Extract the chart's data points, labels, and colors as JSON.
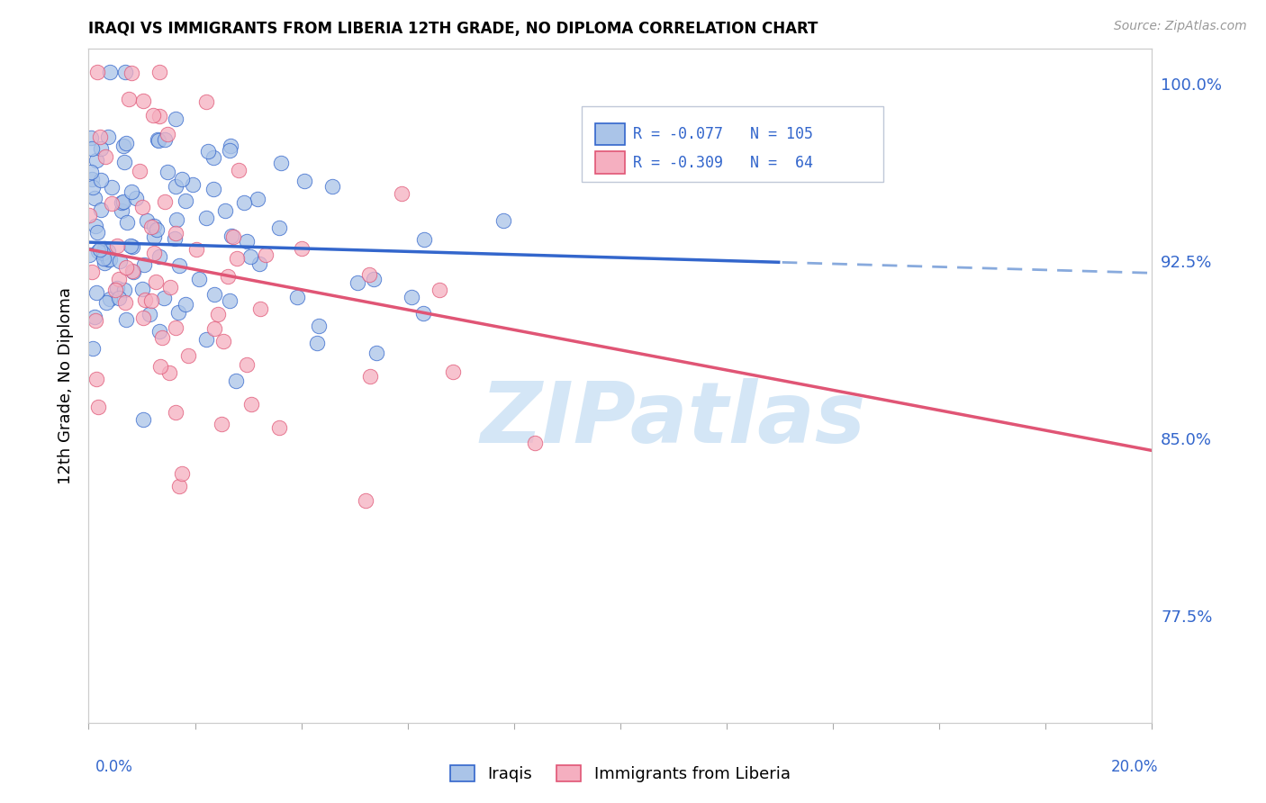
{
  "title": "IRAQI VS IMMIGRANTS FROM LIBERIA 12TH GRADE, NO DIPLOMA CORRELATION CHART",
  "source": "Source: ZipAtlas.com",
  "ylabel": "12th Grade, No Diploma",
  "x_min": 0.0,
  "x_max": 20.0,
  "y_min": 73.0,
  "y_max": 101.5,
  "y_tick_vals": [
    77.5,
    85.0,
    92.5,
    100.0
  ],
  "iraqis_color": "#aac4e8",
  "liberia_color": "#f5afc0",
  "trendline1_color": "#3366cc",
  "trendline2_color": "#e05575",
  "trendline1_dashed_color": "#88aadd",
  "watermark_color": "#d0e4f5",
  "watermark_text": "ZIPatlas",
  "legend_box_color": "#e8f0f8",
  "legend_border_color": "#c0c8d8",
  "grid_color": "#cccccc",
  "tick_label_color": "#3366cc",
  "source_color": "#999999",
  "iraqis_label": "Iraqis",
  "liberia_label": "Immigrants from Liberia",
  "trendline1_solid_end": 13.0,
  "iraqis_seed": 42,
  "liberia_seed": 7
}
